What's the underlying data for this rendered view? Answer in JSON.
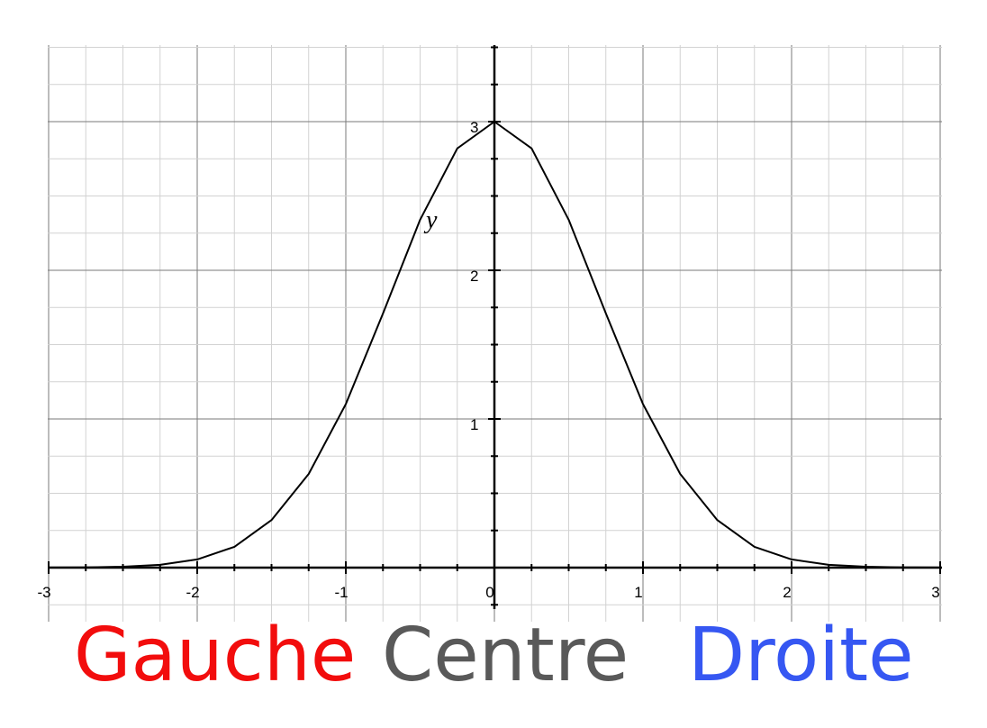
{
  "chart_data": {
    "type": "line",
    "title": "",
    "xlabel": "",
    "ylabel": "",
    "xlim": [
      -3,
      3
    ],
    "ylim": [
      0,
      3.5
    ],
    "grid": true,
    "x_ticks": [
      -3,
      -2,
      -1,
      0,
      1,
      2,
      3
    ],
    "x_tick_labels": [
      "-3",
      "-2",
      "-1",
      "0",
      "1",
      "2",
      "3"
    ],
    "y_ticks": [
      1,
      2,
      3
    ],
    "y_tick_labels": [
      "1",
      "2",
      "3"
    ],
    "curve_label": "y",
    "series": [
      {
        "name": "y",
        "x": [
          -3,
          -2.75,
          -2.5,
          -2.25,
          -2,
          -1.75,
          -1.5,
          -1.25,
          -1,
          -0.75,
          -0.5,
          -0.25,
          0,
          0.25,
          0.5,
          0.75,
          1,
          1.25,
          1.5,
          1.75,
          2,
          2.25,
          2.5,
          2.75,
          3
        ],
        "y": [
          0.00037,
          0.0016,
          0.0058,
          0.019,
          0.055,
          0.14,
          0.32,
          0.63,
          1.1,
          1.71,
          2.34,
          2.82,
          3.0,
          2.82,
          2.34,
          1.71,
          1.1,
          0.63,
          0.32,
          0.14,
          0.055,
          0.019,
          0.0058,
          0.0016,
          0.00037
        ]
      }
    ],
    "colors": {
      "curve": "#000000",
      "major_grid": "#7a7a7a",
      "minor_grid": "#d2d2d2",
      "axis": "#000000"
    }
  },
  "bottom_labels": {
    "left": {
      "text": "Gauche",
      "color": "#f20d0d"
    },
    "center": {
      "text": "Centre",
      "color": "#595959"
    },
    "right": {
      "text": "Droite",
      "color": "#3657f2"
    }
  }
}
